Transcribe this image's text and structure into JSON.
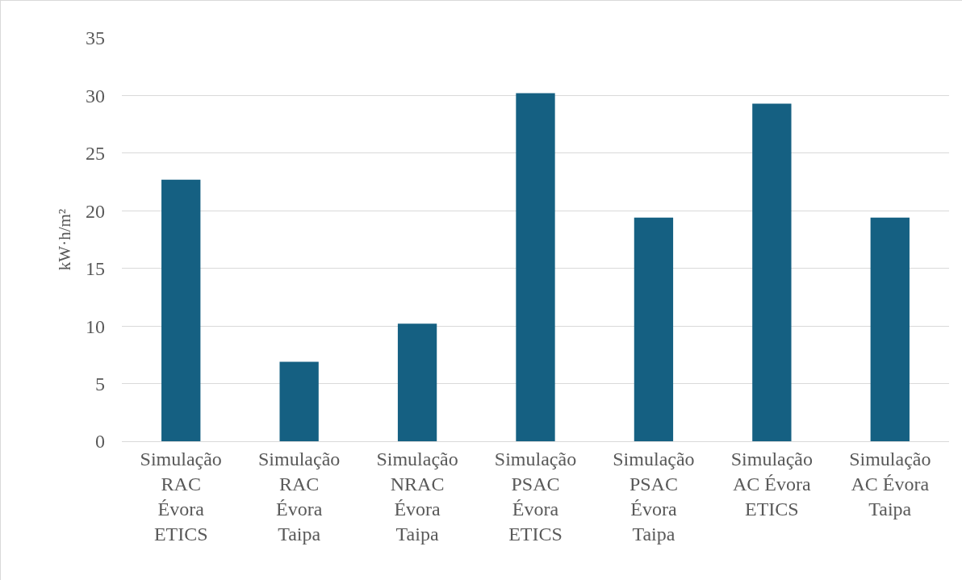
{
  "chart_data": {
    "type": "bar",
    "ylabel": "kW·h/m²",
    "categories": [
      "Simulação RAC Évora ETICS",
      "Simulação RAC Évora Taipa",
      "Simulação NRAC Évora Taipa",
      "Simulação PSAC Évora ETICS",
      "Simulação PSAC Évora Taipa",
      "Simulação AC Évora ETICS",
      "Simulação AC Évora Taipa"
    ],
    "values": [
      22.7,
      6.9,
      10.2,
      30.2,
      19.4,
      29.3,
      19.4
    ],
    "color": "#156082",
    "ylim": [
      0,
      35
    ],
    "yticks": [
      0,
      5,
      10,
      15,
      20,
      25,
      30,
      35
    ],
    "grid": "y",
    "legend": false
  }
}
